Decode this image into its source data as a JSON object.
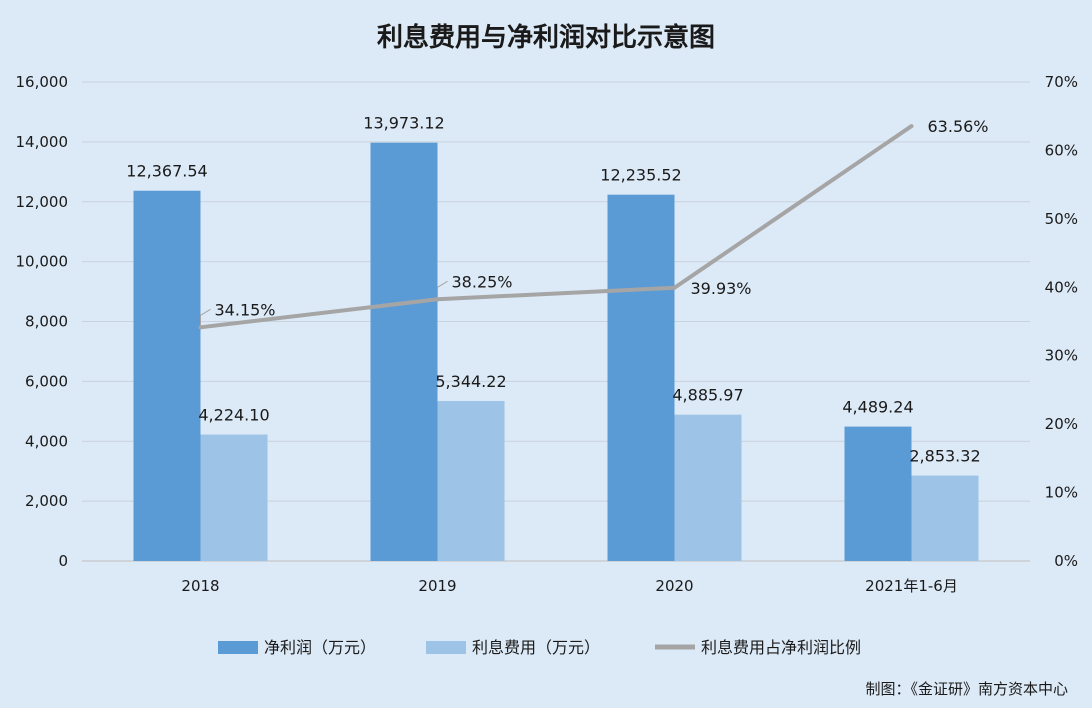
{
  "chart_data": {
    "type": "bar",
    "title": "利息费用与净利润对比示意图",
    "categories": [
      "2018",
      "2019",
      "2020",
      "2021年1-6月"
    ],
    "series": [
      {
        "name": "净利润（万元）",
        "kind": "bar",
        "axis": "left",
        "color": "#5b9bd5",
        "values": [
          12367.54,
          13973.12,
          12235.52,
          4489.24
        ],
        "labels": [
          "12,367.54",
          "13,973.12",
          "12,235.52",
          "4,489.24"
        ]
      },
      {
        "name": "利息费用（万元）",
        "kind": "bar",
        "axis": "left",
        "color": "#9dc3e6",
        "values": [
          4224.1,
          5344.22,
          4885.97,
          2853.32
        ],
        "labels": [
          "4,224.10",
          "5,344.22",
          "4,885.97",
          "2,853.32"
        ]
      },
      {
        "name": "利息费用占净利润比例",
        "kind": "line",
        "axis": "right",
        "color": "#a5a5a5",
        "values": [
          34.15,
          38.25,
          39.93,
          63.56
        ],
        "labels": [
          "34.15%",
          "38.25%",
          "39.93%",
          "63.56%"
        ]
      }
    ],
    "y_left": {
      "ylim": [
        0,
        16000
      ],
      "ticks": [
        0,
        2000,
        4000,
        6000,
        8000,
        10000,
        12000,
        14000,
        16000
      ],
      "tick_labels": [
        "0",
        "2,000",
        "4,000",
        "6,000",
        "8,000",
        "10,000",
        "12,000",
        "14,000",
        "16,000"
      ]
    },
    "y_right": {
      "ylim": [
        0,
        70
      ],
      "ticks": [
        0,
        10,
        20,
        30,
        40,
        50,
        60,
        70
      ],
      "tick_labels": [
        "0%",
        "10%",
        "20%",
        "30%",
        "40%",
        "50%",
        "60%",
        "70%"
      ]
    },
    "grid": true,
    "legend_position": "bottom"
  },
  "footer": {
    "credit": "制图：《金证研》南方资本中心"
  }
}
